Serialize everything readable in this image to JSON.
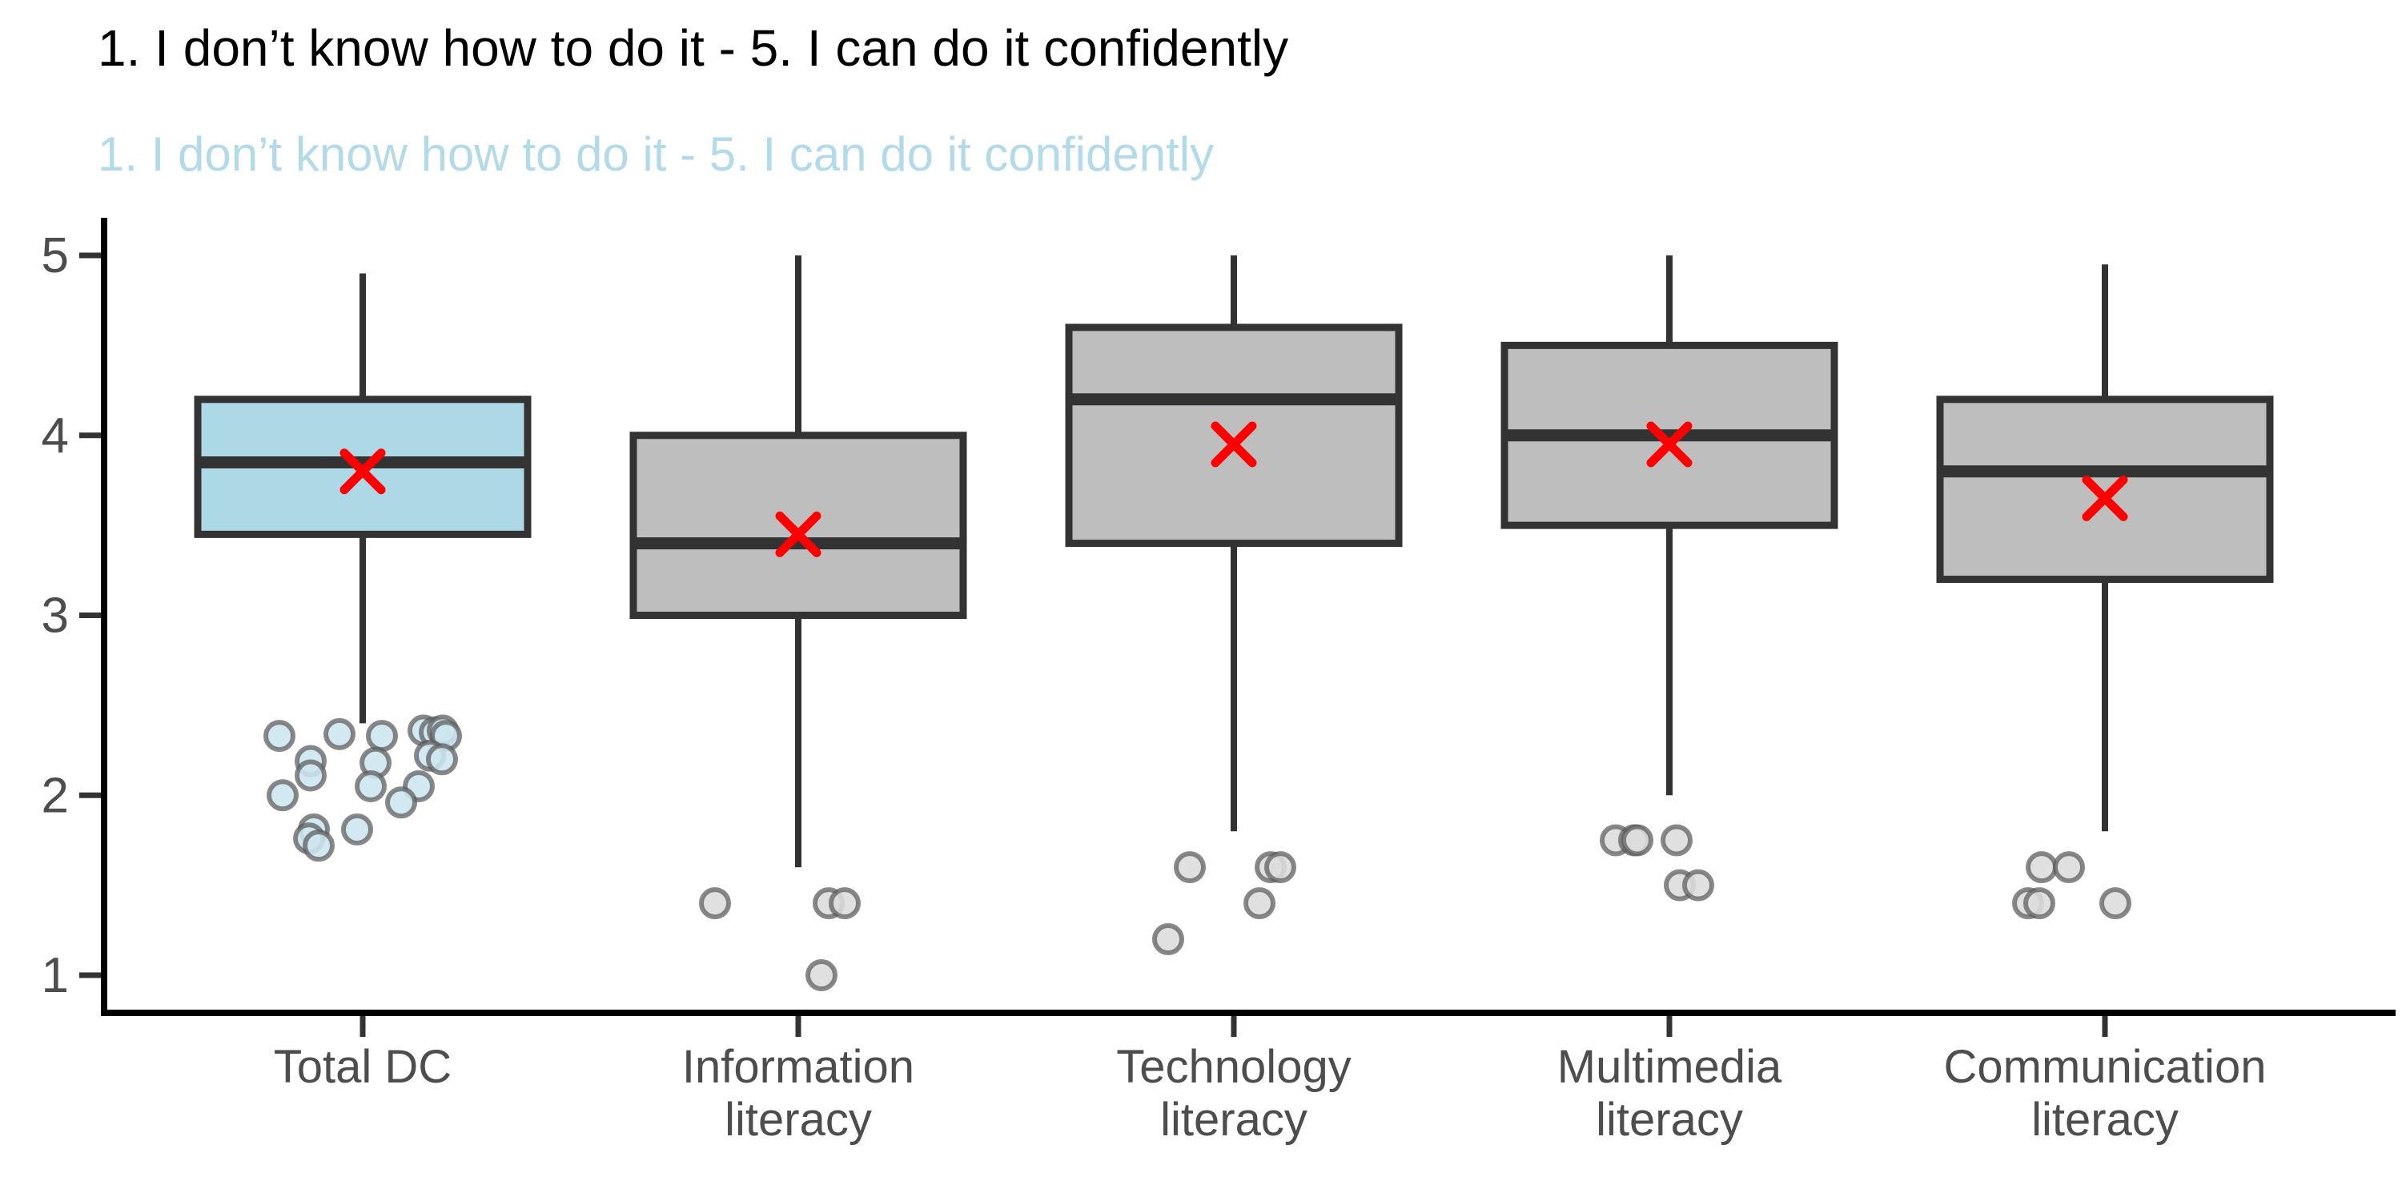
{
  "chart": {
    "title": "1. I don’t know how to do it - 5. I can do it confidently",
    "subtitle": "1. I don’t know how to do it - 5. I can do it confidently",
    "colors": {
      "title_text": "#000000",
      "subtitle_text": "#B3DAE8",
      "axis_line": "#000000",
      "axis_text": "#4D4D4D",
      "box_border": "#333333",
      "median_line": "#333333",
      "blue_box_fill": "#ADD8E6",
      "gray_box_fill": "#BEBEBE",
      "mean_marker": "#FF0000",
      "blue_point_fill": "#CDE6F0",
      "gray_point_fill": "#DCDCDC",
      "point_stroke": "#5A5A5A"
    }
  },
  "chart_data": {
    "type": "boxplot",
    "title": "1. I don’t know how to do it - 5. I can do it confidently",
    "subtitle": "1. I don’t know how to do it - 5. I can do it confidently",
    "xlabel": "",
    "ylabel": "",
    "ylim": [
      1,
      5
    ],
    "yticks": [
      5,
      4,
      3,
      2,
      1
    ],
    "grid": false,
    "legend": "none",
    "mean_marker_shape": "x-cross",
    "categories": [
      "Total DC",
      "Information literacy",
      "Technology literacy",
      "Multimedia literacy",
      "Communication literacy"
    ],
    "series": [
      {
        "name": "Total DC",
        "label_lines": [
          "Total DC"
        ],
        "fill": "#ADD8E6",
        "point_fill": "#CDE6F0",
        "whisker_low": 2.4,
        "q1": 3.45,
        "median": 3.85,
        "q3": 4.2,
        "whisker_high": 4.9,
        "mean": 3.8,
        "outliers": [
          {
            "dx": -104,
            "value": 2.33
          },
          {
            "dx": -29,
            "value": 2.34
          },
          {
            "dx": 24,
            "value": 2.33
          },
          {
            "dx": 76,
            "value": 2.36
          },
          {
            "dx": 90,
            "value": 2.35
          },
          {
            "dx": 100,
            "value": 2.36
          },
          {
            "dx": 104,
            "value": 2.33
          },
          {
            "dx": 84,
            "value": 2.22
          },
          {
            "dx": 99,
            "value": 2.2
          },
          {
            "dx": -65,
            "value": 2.19
          },
          {
            "dx": 16,
            "value": 2.18
          },
          {
            "dx": -65,
            "value": 2.11
          },
          {
            "dx": 10,
            "value": 2.05
          },
          {
            "dx": 70,
            "value": 2.05
          },
          {
            "dx": 48,
            "value": 1.96
          },
          {
            "dx": -100,
            "value": 2.0
          },
          {
            "dx": -61,
            "value": 1.81
          },
          {
            "dx": -7,
            "value": 1.81
          },
          {
            "dx": -67,
            "value": 1.76
          },
          {
            "dx": -55,
            "value": 1.72
          }
        ]
      },
      {
        "name": "Information literacy",
        "label_lines": [
          "Information",
          "literacy"
        ],
        "fill": "#BEBEBE",
        "point_fill": "#DCDCDC",
        "whisker_low": 1.6,
        "q1": 3.0,
        "median": 3.4,
        "q3": 4.0,
        "whisker_high": 5.0,
        "mean": 3.45,
        "outliers": [
          {
            "dx": -104,
            "value": 1.4
          },
          {
            "dx": 38,
            "value": 1.4
          },
          {
            "dx": 58,
            "value": 1.4
          },
          {
            "dx": 29,
            "value": 1.0
          }
        ]
      },
      {
        "name": "Technology literacy",
        "label_lines": [
          "Technology",
          "literacy"
        ],
        "fill": "#BEBEBE",
        "point_fill": "#DCDCDC",
        "whisker_low": 1.8,
        "q1": 3.4,
        "median": 4.2,
        "q3": 4.6,
        "whisker_high": 5.0,
        "mean": 3.95,
        "outliers": [
          {
            "dx": -55,
            "value": 1.6
          },
          {
            "dx": 46,
            "value": 1.6
          },
          {
            "dx": 58,
            "value": 1.6
          },
          {
            "dx": 32,
            "value": 1.4
          },
          {
            "dx": -82,
            "value": 1.2
          }
        ]
      },
      {
        "name": "Multimedia literacy",
        "label_lines": [
          "Multimedia",
          "literacy"
        ],
        "fill": "#BEBEBE",
        "point_fill": "#DCDCDC",
        "whisker_low": 2.0,
        "q1": 3.5,
        "median": 4.0,
        "q3": 4.5,
        "whisker_high": 5.0,
        "mean": 3.95,
        "outliers": [
          {
            "dx": -67,
            "value": 1.75
          },
          {
            "dx": -44,
            "value": 1.75
          },
          {
            "dx": -40,
            "value": 1.75
          },
          {
            "dx": 9,
            "value": 1.75
          },
          {
            "dx": 13,
            "value": 1.5
          },
          {
            "dx": 36,
            "value": 1.5
          }
        ]
      },
      {
        "name": "Communication literacy",
        "label_lines": [
          "Communication",
          "literacy"
        ],
        "fill": "#BEBEBE",
        "point_fill": "#DCDCDC",
        "whisker_low": 1.8,
        "q1": 3.2,
        "median": 3.8,
        "q3": 4.2,
        "whisker_high": 4.95,
        "mean": 3.65,
        "outliers": [
          {
            "dx": -79,
            "value": 1.6
          },
          {
            "dx": -45,
            "value": 1.6
          },
          {
            "dx": -96,
            "value": 1.4
          },
          {
            "dx": -82,
            "value": 1.4
          },
          {
            "dx": 13,
            "value": 1.4
          }
        ]
      }
    ]
  }
}
